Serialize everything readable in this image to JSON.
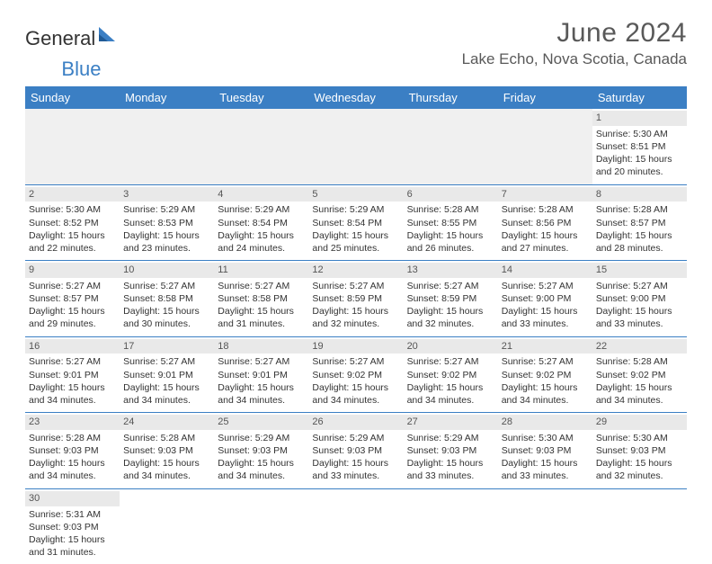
{
  "brand": {
    "name_part1": "General",
    "name_part2": "Blue"
  },
  "title": "June 2024",
  "location": "Lake Echo, Nova Scotia, Canada",
  "colors": {
    "header_bg": "#3b7fc4",
    "header_text": "#ffffff",
    "daynum_bg": "#e9e9e9",
    "blank_bg": "#f0f0f0",
    "border": "#3b7fc4",
    "title_color": "#595959"
  },
  "weekdays": [
    "Sunday",
    "Monday",
    "Tuesday",
    "Wednesday",
    "Thursday",
    "Friday",
    "Saturday"
  ],
  "weeks": [
    [
      null,
      null,
      null,
      null,
      null,
      null,
      {
        "n": "1",
        "sr": "Sunrise: 5:30 AM",
        "ss": "Sunset: 8:51 PM",
        "d1": "Daylight: 15 hours",
        "d2": "and 20 minutes."
      }
    ],
    [
      {
        "n": "2",
        "sr": "Sunrise: 5:30 AM",
        "ss": "Sunset: 8:52 PM",
        "d1": "Daylight: 15 hours",
        "d2": "and 22 minutes."
      },
      {
        "n": "3",
        "sr": "Sunrise: 5:29 AM",
        "ss": "Sunset: 8:53 PM",
        "d1": "Daylight: 15 hours",
        "d2": "and 23 minutes."
      },
      {
        "n": "4",
        "sr": "Sunrise: 5:29 AM",
        "ss": "Sunset: 8:54 PM",
        "d1": "Daylight: 15 hours",
        "d2": "and 24 minutes."
      },
      {
        "n": "5",
        "sr": "Sunrise: 5:29 AM",
        "ss": "Sunset: 8:54 PM",
        "d1": "Daylight: 15 hours",
        "d2": "and 25 minutes."
      },
      {
        "n": "6",
        "sr": "Sunrise: 5:28 AM",
        "ss": "Sunset: 8:55 PM",
        "d1": "Daylight: 15 hours",
        "d2": "and 26 minutes."
      },
      {
        "n": "7",
        "sr": "Sunrise: 5:28 AM",
        "ss": "Sunset: 8:56 PM",
        "d1": "Daylight: 15 hours",
        "d2": "and 27 minutes."
      },
      {
        "n": "8",
        "sr": "Sunrise: 5:28 AM",
        "ss": "Sunset: 8:57 PM",
        "d1": "Daylight: 15 hours",
        "d2": "and 28 minutes."
      }
    ],
    [
      {
        "n": "9",
        "sr": "Sunrise: 5:27 AM",
        "ss": "Sunset: 8:57 PM",
        "d1": "Daylight: 15 hours",
        "d2": "and 29 minutes."
      },
      {
        "n": "10",
        "sr": "Sunrise: 5:27 AM",
        "ss": "Sunset: 8:58 PM",
        "d1": "Daylight: 15 hours",
        "d2": "and 30 minutes."
      },
      {
        "n": "11",
        "sr": "Sunrise: 5:27 AM",
        "ss": "Sunset: 8:58 PM",
        "d1": "Daylight: 15 hours",
        "d2": "and 31 minutes."
      },
      {
        "n": "12",
        "sr": "Sunrise: 5:27 AM",
        "ss": "Sunset: 8:59 PM",
        "d1": "Daylight: 15 hours",
        "d2": "and 32 minutes."
      },
      {
        "n": "13",
        "sr": "Sunrise: 5:27 AM",
        "ss": "Sunset: 8:59 PM",
        "d1": "Daylight: 15 hours",
        "d2": "and 32 minutes."
      },
      {
        "n": "14",
        "sr": "Sunrise: 5:27 AM",
        "ss": "Sunset: 9:00 PM",
        "d1": "Daylight: 15 hours",
        "d2": "and 33 minutes."
      },
      {
        "n": "15",
        "sr": "Sunrise: 5:27 AM",
        "ss": "Sunset: 9:00 PM",
        "d1": "Daylight: 15 hours",
        "d2": "and 33 minutes."
      }
    ],
    [
      {
        "n": "16",
        "sr": "Sunrise: 5:27 AM",
        "ss": "Sunset: 9:01 PM",
        "d1": "Daylight: 15 hours",
        "d2": "and 34 minutes."
      },
      {
        "n": "17",
        "sr": "Sunrise: 5:27 AM",
        "ss": "Sunset: 9:01 PM",
        "d1": "Daylight: 15 hours",
        "d2": "and 34 minutes."
      },
      {
        "n": "18",
        "sr": "Sunrise: 5:27 AM",
        "ss": "Sunset: 9:01 PM",
        "d1": "Daylight: 15 hours",
        "d2": "and 34 minutes."
      },
      {
        "n": "19",
        "sr": "Sunrise: 5:27 AM",
        "ss": "Sunset: 9:02 PM",
        "d1": "Daylight: 15 hours",
        "d2": "and 34 minutes."
      },
      {
        "n": "20",
        "sr": "Sunrise: 5:27 AM",
        "ss": "Sunset: 9:02 PM",
        "d1": "Daylight: 15 hours",
        "d2": "and 34 minutes."
      },
      {
        "n": "21",
        "sr": "Sunrise: 5:27 AM",
        "ss": "Sunset: 9:02 PM",
        "d1": "Daylight: 15 hours",
        "d2": "and 34 minutes."
      },
      {
        "n": "22",
        "sr": "Sunrise: 5:28 AM",
        "ss": "Sunset: 9:02 PM",
        "d1": "Daylight: 15 hours",
        "d2": "and 34 minutes."
      }
    ],
    [
      {
        "n": "23",
        "sr": "Sunrise: 5:28 AM",
        "ss": "Sunset: 9:03 PM",
        "d1": "Daylight: 15 hours",
        "d2": "and 34 minutes."
      },
      {
        "n": "24",
        "sr": "Sunrise: 5:28 AM",
        "ss": "Sunset: 9:03 PM",
        "d1": "Daylight: 15 hours",
        "d2": "and 34 minutes."
      },
      {
        "n": "25",
        "sr": "Sunrise: 5:29 AM",
        "ss": "Sunset: 9:03 PM",
        "d1": "Daylight: 15 hours",
        "d2": "and 34 minutes."
      },
      {
        "n": "26",
        "sr": "Sunrise: 5:29 AM",
        "ss": "Sunset: 9:03 PM",
        "d1": "Daylight: 15 hours",
        "d2": "and 33 minutes."
      },
      {
        "n": "27",
        "sr": "Sunrise: 5:29 AM",
        "ss": "Sunset: 9:03 PM",
        "d1": "Daylight: 15 hours",
        "d2": "and 33 minutes."
      },
      {
        "n": "28",
        "sr": "Sunrise: 5:30 AM",
        "ss": "Sunset: 9:03 PM",
        "d1": "Daylight: 15 hours",
        "d2": "and 33 minutes."
      },
      {
        "n": "29",
        "sr": "Sunrise: 5:30 AM",
        "ss": "Sunset: 9:03 PM",
        "d1": "Daylight: 15 hours",
        "d2": "and 32 minutes."
      }
    ],
    [
      {
        "n": "30",
        "sr": "Sunrise: 5:31 AM",
        "ss": "Sunset: 9:03 PM",
        "d1": "Daylight: 15 hours",
        "d2": "and 31 minutes."
      },
      null,
      null,
      null,
      null,
      null,
      null
    ]
  ]
}
